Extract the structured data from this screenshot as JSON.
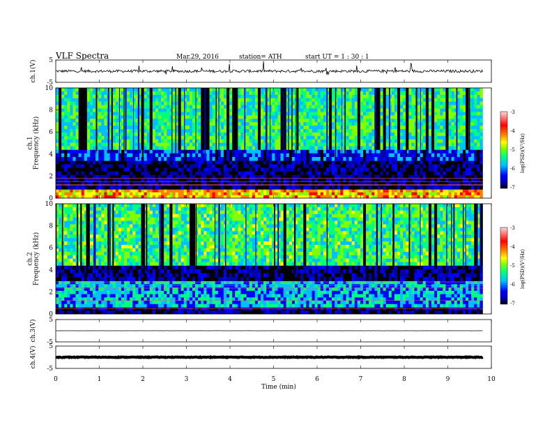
{
  "header": {
    "title": "VLF  Spectra",
    "date": "Mar.29, 2016",
    "station": "station= ATH",
    "start": "start  UT  =    1  : 30 : 1"
  },
  "chart_data": [
    {
      "type": "line",
      "panel": "ch1-waveform",
      "ylabel": "ch.1(V)",
      "yticks": [
        "5",
        "-5"
      ],
      "ylim": [
        -5,
        5
      ],
      "xlim": [
        0,
        10
      ],
      "trace": {
        "color": "#000000",
        "baseline": 0,
        "approx_amplitude": 1.2,
        "ends_at": 9.8
      }
    },
    {
      "type": "heatmap",
      "panel": "ch1-spectrogram",
      "ylabel": "ch.1\nFrequency  (kHz)",
      "yticks": [
        "0",
        "2",
        "4",
        "6",
        "8",
        "10"
      ],
      "ylim": [
        0,
        10
      ],
      "xlim": [
        0,
        10
      ],
      "colorbar": {
        "label": "log(PSD)(V²/Hz)",
        "ticks": [
          "-3",
          "-4",
          "-5",
          "-6",
          "-7"
        ],
        "range": [
          -7,
          -3
        ]
      },
      "bands_khz": [
        {
          "range": [
            0,
            0.8
          ],
          "logpsd": -4.2
        },
        {
          "range": [
            0.8,
            3.4
          ],
          "logpsd": -6.6
        },
        {
          "range": [
            3.4,
            4.4
          ],
          "logpsd": -6.0
        },
        {
          "range": [
            4.4,
            10
          ],
          "logpsd": -5.2
        }
      ]
    },
    {
      "type": "heatmap",
      "panel": "ch2-spectrogram",
      "ylabel": "ch.2\nFrequency  (kHz)",
      "yticks": [
        "0",
        "2",
        "4",
        "6",
        "8",
        "10"
      ],
      "ylim": [
        0,
        10
      ],
      "xlim": [
        0,
        10
      ],
      "colorbar": {
        "label": "log(PSD)(V²/Hz)",
        "ticks": [
          "-3",
          "-4",
          "-5",
          "-6",
          "-7"
        ],
        "range": [
          -7,
          -3
        ]
      },
      "bands_khz": [
        {
          "range": [
            0,
            0.6
          ],
          "logpsd": -6.5
        },
        {
          "range": [
            0.6,
            3.0
          ],
          "logpsd": -5.6
        },
        {
          "range": [
            3.0,
            4.4
          ],
          "logpsd": -6.5
        },
        {
          "range": [
            4.4,
            10
          ],
          "logpsd": -5.1
        }
      ]
    },
    {
      "type": "line",
      "panel": "ch3-waveform",
      "ylabel": "ch.3(V)",
      "yticks": [
        "5",
        "-5"
      ],
      "ylim": [
        -5,
        5
      ],
      "xlim": [
        0,
        10
      ],
      "trace": {
        "color": "#000000",
        "baseline": 0,
        "approx_amplitude": 0.05,
        "ends_at": 9.8
      }
    },
    {
      "type": "line",
      "panel": "ch4-waveform",
      "ylabel": "ch.4(V)",
      "yticks": [
        "5",
        "-5"
      ],
      "ylim": [
        -5,
        5
      ],
      "xlim": [
        0,
        10
      ],
      "trace": {
        "color": "#000000",
        "baseline": 0,
        "approx_amplitude": 0.3,
        "ends_at": 9.8
      }
    }
  ],
  "x_axis": {
    "label": "Time  (min)",
    "ticks": [
      "0",
      "1",
      "2",
      "3",
      "4",
      "5",
      "6",
      "7",
      "8",
      "9",
      "10"
    ],
    "range": [
      0,
      10
    ]
  },
  "colors": {
    "spectrogram": [
      "#000000",
      "#0000aa",
      "#0000ff",
      "#00bfff",
      "#00ff80",
      "#80ff00",
      "#ffff00",
      "#ff8000",
      "#ff0000",
      "#ffc0c0"
    ]
  }
}
